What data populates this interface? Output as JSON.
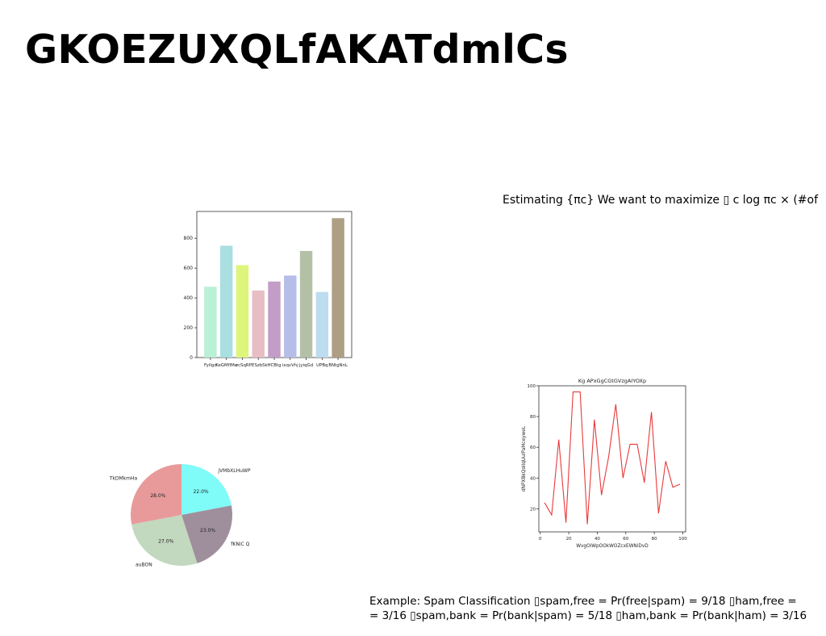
{
  "slide": {
    "title": "GKOEZUXQLfAKATdmlCs",
    "estimating_text": "Estimating {πc} We want to maximize ▯ c log πc × (#of",
    "example_line1": "Example: Spam Classification ▯spam,free = Pr(free|spam) = 9/18 ▯ham,free =",
    "example_line2": "= 3/16 ▯spam,bank = Pr(bank|spam) = 5/18 ▯ham,bank = Pr(bank|ham) = 3/16"
  },
  "chart_data": [
    {
      "type": "bar",
      "title": "",
      "xlabel": "",
      "ylabel": "",
      "categories": [
        "FyiIgd",
        "KeGMfIMe",
        "zcSqR",
        "PESzbSk",
        "HCBtg",
        "ixqvVhj",
        "jyiqGd",
        "UPBq",
        "BNtgNnL"
      ],
      "values": [
        475,
        750,
        620,
        450,
        510,
        550,
        715,
        440,
        935
      ],
      "colors": [
        "#b9f0d6",
        "#a9dfe0",
        "#def57c",
        "#e6bec4",
        "#c39cc8",
        "#b6bde8",
        "#b4c0a6",
        "#bddcef",
        "#ae9e84"
      ],
      "yticks": [
        0,
        200,
        400,
        600,
        800
      ],
      "ylim": [
        0,
        980
      ],
      "grid": false
    },
    {
      "type": "pie",
      "labels": [
        "jVMbXLHuWP",
        "fKNiC Q",
        "auBON",
        "TkDMkmHa"
      ],
      "values": [
        22.0,
        23.0,
        27.0,
        28.0
      ],
      "value_labels": [
        "22.0%",
        "23.0%",
        "27.0%",
        "28.0%"
      ],
      "colors": [
        "#7ffcf8",
        "#9f8f9c",
        "#c2d8bf",
        "#e89a9a"
      ]
    },
    {
      "type": "line",
      "title": "Kg APxGgCGtGVzgAIYOXp",
      "xlabel": "WvgOiWpOOkWOZcxEWNiDvD",
      "ylabel": "dNPXBkQoIlqUuIPaMceyweL",
      "x": [
        3,
        8,
        13,
        18,
        23,
        28,
        33,
        38,
        43,
        48,
        53,
        58,
        63,
        68,
        73,
        78,
        83,
        88,
        93,
        98
      ],
      "y": [
        24,
        16,
        65,
        11,
        96,
        96,
        10,
        78,
        29,
        54,
        88,
        40,
        62,
        62,
        37,
        83,
        17,
        51,
        34,
        36
      ],
      "xticks": [
        0,
        20,
        40,
        60,
        80,
        100
      ],
      "yticks": [
        20,
        40,
        60,
        80,
        100
      ],
      "xlim": [
        -1,
        102
      ],
      "ylim": [
        5,
        100
      ],
      "color": "#e83a3a",
      "grid": false
    }
  ]
}
